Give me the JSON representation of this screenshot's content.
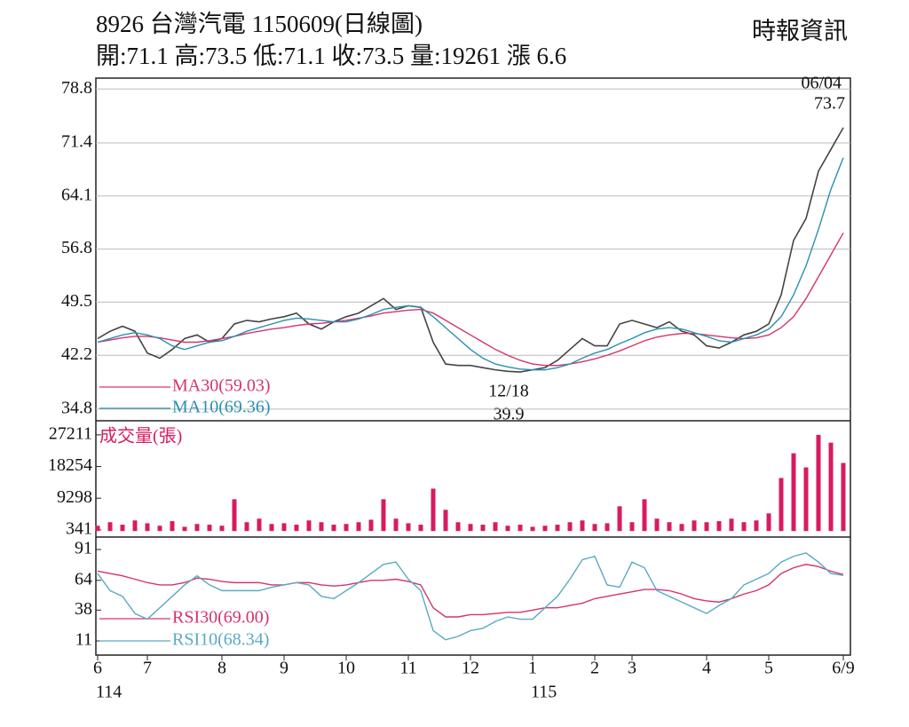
{
  "header": {
    "title": "8926  台灣汽電 1150609(日線圖)",
    "source": "時報資訊",
    "info": "開:71.1 高:73.5 低:71.1 收:73.5 量:19261 漲 6.6"
  },
  "chart_data": [
    {
      "type": "line",
      "ylim": [
        33.2,
        80.3
      ],
      "yticks": [
        34.8,
        42.2,
        49.5,
        56.8,
        64.1,
        71.4,
        78.8
      ],
      "grid": true,
      "color": "#444444",
      "values": [
        44.5,
        45.5,
        46.2,
        45.5,
        42.5,
        41.8,
        43.0,
        44.5,
        45.0,
        44.0,
        44.5,
        46.5,
        47.0,
        46.8,
        47.2,
        47.5,
        48.0,
        46.5,
        45.8,
        46.8,
        47.5,
        48.0,
        49.0,
        50.0,
        48.5,
        49.0,
        48.8,
        44.0,
        41.0,
        40.8,
        40.8,
        40.5,
        40.2,
        40.0,
        39.9,
        40.2,
        40.5,
        41.5,
        43.0,
        44.5,
        43.5,
        43.5,
        46.5,
        47.0,
        46.5,
        46.0,
        46.8,
        45.5,
        45.0,
        43.5,
        43.2,
        44.0,
        45.0,
        45.5,
        46.5,
        50.5,
        58.0,
        61.0,
        67.5,
        70.5,
        73.5
      ],
      "series": [
        {
          "name": "MA30(59.03)",
          "color": "#d6336c",
          "values": [
            44.0,
            44.3,
            44.6,
            44.8,
            44.8,
            44.6,
            44.3,
            44.0,
            44.0,
            44.2,
            44.5,
            44.8,
            45.2,
            45.5,
            45.8,
            46.0,
            46.3,
            46.5,
            46.6,
            46.8,
            47.0,
            47.3,
            47.6,
            48.0,
            48.2,
            48.4,
            48.5,
            48.0,
            47.0,
            46.0,
            45.0,
            44.0,
            43.0,
            42.2,
            41.5,
            41.0,
            40.8,
            40.8,
            41.0,
            41.3,
            41.7,
            42.2,
            42.8,
            43.5,
            44.2,
            44.7,
            45.0,
            45.2,
            45.2,
            45.0,
            44.8,
            44.6,
            44.5,
            44.6,
            45.0,
            46.0,
            47.5,
            50.0,
            53.0,
            56.0,
            59.03
          ]
        },
        {
          "name": "MA10(69.36)",
          "color": "#2a8fb0",
          "values": [
            44.0,
            44.5,
            45.0,
            45.3,
            45.0,
            44.5,
            43.5,
            43.0,
            43.5,
            44.0,
            44.2,
            44.8,
            45.5,
            46.0,
            46.5,
            47.0,
            47.3,
            47.2,
            47.0,
            46.8,
            46.8,
            47.2,
            47.8,
            48.5,
            48.8,
            49.0,
            48.8,
            47.5,
            46.0,
            44.5,
            43.0,
            41.8,
            41.0,
            40.6,
            40.3,
            40.2,
            40.2,
            40.5,
            41.0,
            41.8,
            42.5,
            43.0,
            43.8,
            44.5,
            45.3,
            45.8,
            46.0,
            45.8,
            45.3,
            44.8,
            44.2,
            44.0,
            44.5,
            45.0,
            45.8,
            47.5,
            50.5,
            54.5,
            59.5,
            65.0,
            69.36
          ]
        }
      ],
      "annotations": [
        {
          "label": "06/04",
          "value": 73.7
        },
        {
          "label": "12/18",
          "value": 39.9
        }
      ]
    },
    {
      "type": "bar",
      "title": "成交量(張)",
      "color": "#d81b60",
      "ylim": [
        -1700,
        31200
      ],
      "yticks": [
        341,
        9298,
        18254,
        27211
      ],
      "values": [
        1500,
        2500,
        1800,
        3000,
        2200,
        1500,
        2800,
        1200,
        2000,
        1800,
        1500,
        9000,
        2500,
        3500,
        2000,
        2200,
        1800,
        3000,
        2500,
        1800,
        2000,
        2500,
        3200,
        9000,
        3500,
        2200,
        1800,
        12000,
        6000,
        2500,
        2000,
        1800,
        2500,
        1500,
        1800,
        1200,
        1500,
        1800,
        2500,
        3000,
        2000,
        2200,
        7000,
        2500,
        9000,
        3500,
        2500,
        2000,
        3000,
        2500,
        2800,
        3500,
        2500,
        3000,
        5000,
        15000,
        22000,
        18000,
        27211,
        25000,
        19261
      ]
    },
    {
      "type": "line",
      "ylim": [
        -1.4,
        101.9
      ],
      "yticks": [
        11,
        38,
        64,
        91
      ],
      "series": [
        {
          "name": "RSI30(69.00)",
          "color": "#d6336c",
          "values": [
            72,
            70,
            68,
            65,
            62,
            60,
            60,
            62,
            66,
            65,
            63,
            62,
            62,
            62,
            60,
            60,
            62,
            62,
            60,
            59,
            60,
            62,
            64,
            64,
            65,
            63,
            60,
            40,
            32,
            32,
            34,
            34,
            35,
            36,
            36,
            38,
            40,
            40,
            42,
            44,
            48,
            50,
            52,
            54,
            56,
            56,
            55,
            52,
            48,
            46,
            45,
            48,
            52,
            55,
            60,
            70,
            75,
            78,
            76,
            72,
            69.0
          ]
        },
        {
          "name": "RSI10(68.34)",
          "color": "#5aaac4",
          "values": [
            70,
            55,
            50,
            35,
            30,
            40,
            50,
            60,
            68,
            60,
            55,
            55,
            55,
            55,
            58,
            60,
            62,
            60,
            50,
            48,
            55,
            62,
            70,
            78,
            80,
            65,
            55,
            20,
            12,
            15,
            20,
            22,
            28,
            32,
            30,
            30,
            40,
            50,
            65,
            82,
            85,
            60,
            58,
            80,
            75,
            55,
            50,
            45,
            40,
            35,
            42,
            48,
            60,
            65,
            70,
            80,
            85,
            88,
            80,
            70,
            68.34
          ]
        }
      ],
      "categories": [
        "6",
        null,
        null,
        null,
        "7",
        null,
        null,
        null,
        null,
        null,
        "8",
        null,
        null,
        null,
        null,
        "9",
        null,
        null,
        null,
        null,
        "10",
        null,
        null,
        null,
        null,
        "11",
        null,
        null,
        null,
        null,
        "12",
        null,
        null,
        null,
        null,
        "1",
        null,
        null,
        null,
        null,
        "2",
        null,
        null,
        "3",
        null,
        null,
        null,
        null,
        null,
        "4",
        null,
        null,
        null,
        null,
        "5",
        null,
        null,
        null,
        null,
        null,
        "6/9"
      ],
      "year_labels": [
        "114",
        null,
        null,
        null,
        null,
        null,
        null,
        null,
        null,
        null,
        null,
        null,
        null,
        null,
        null,
        null,
        null,
        null,
        null,
        null,
        null,
        null,
        null,
        null,
        null,
        null,
        null,
        null,
        null,
        null,
        null,
        null,
        null,
        null,
        null,
        "115",
        null,
        null,
        null,
        null,
        null,
        null,
        null,
        null,
        null,
        null,
        null,
        null,
        null,
        null,
        null,
        null,
        null,
        null,
        null,
        null,
        null,
        null,
        null,
        null,
        null
      ]
    }
  ]
}
